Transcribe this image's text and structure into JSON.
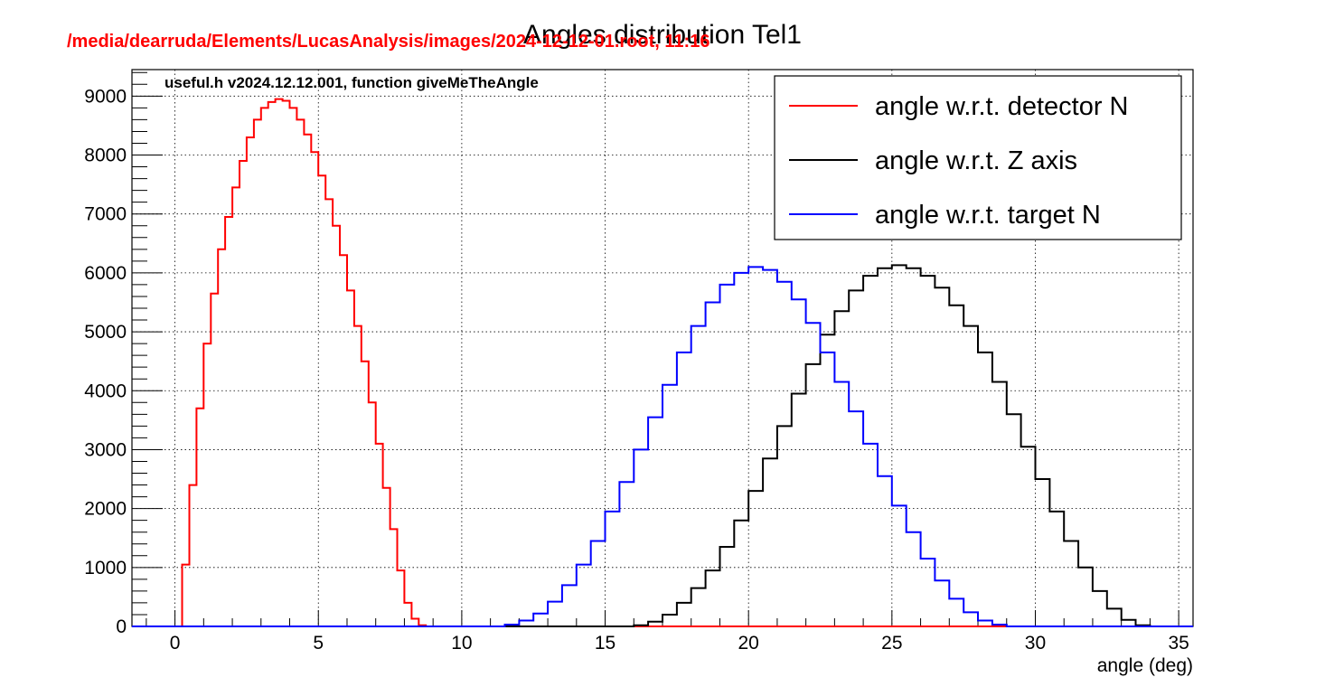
{
  "chart_data": {
    "type": "line",
    "title": "Angles distribution Tel1",
    "file_label": "/media/dearruda/Elements/LucasAnalysis/images/2024-12-12-01.root, 11:16",
    "version_label": "useful.h v2024.12.12.001, function giveMeTheAngle",
    "xlabel": "angle (deg)",
    "ylabel": "",
    "xlim": [
      -1.5,
      35.5
    ],
    "ylim": [
      0,
      9450
    ],
    "x_ticks": [
      0,
      5,
      10,
      15,
      20,
      25,
      30,
      35
    ],
    "y_ticks": [
      0,
      1000,
      2000,
      3000,
      4000,
      5000,
      6000,
      7000,
      8000,
      9000
    ],
    "grid": true,
    "legend_position": "top-right",
    "histogram_step": true,
    "series": [
      {
        "name": "angle w.r.t. detector N",
        "color": "#ff0000",
        "x": [
          -1.5,
          0,
          0.25,
          0.5,
          0.75,
          1,
          1.25,
          1.5,
          1.75,
          2,
          2.25,
          2.5,
          2.75,
          3,
          3.25,
          3.5,
          3.75,
          4,
          4.25,
          4.5,
          4.75,
          5,
          5.25,
          5.5,
          5.75,
          6,
          6.25,
          6.5,
          6.75,
          7,
          7.25,
          7.5,
          7.75,
          8,
          8.25,
          8.5,
          8.75,
          9,
          9.25,
          9.5,
          35.5
        ],
        "y": [
          0,
          0,
          1050,
          2400,
          3700,
          4800,
          5650,
          6400,
          6950,
          7450,
          7900,
          8300,
          8600,
          8800,
          8900,
          8950,
          8920,
          8800,
          8600,
          8350,
          8050,
          7650,
          7250,
          6800,
          6300,
          5700,
          5100,
          4500,
          3800,
          3100,
          2350,
          1650,
          950,
          400,
          130,
          20,
          0,
          0,
          0,
          0,
          0
        ]
      },
      {
        "name": "angle w.r.t. Z axis",
        "color": "#000000",
        "x": [
          -1.5,
          15.5,
          16,
          16.5,
          17,
          17.5,
          18,
          18.5,
          19,
          19.5,
          20,
          20.5,
          21,
          21.5,
          22,
          22.5,
          23,
          23.5,
          24,
          24.5,
          25,
          25.5,
          26,
          26.5,
          27,
          27.5,
          28,
          28.5,
          29,
          29.5,
          30,
          30.5,
          31,
          31.5,
          32,
          32.5,
          33,
          33.5,
          34,
          35.5
        ],
        "y": [
          0,
          0,
          20,
          80,
          200,
          400,
          650,
          950,
          1350,
          1800,
          2300,
          2850,
          3400,
          3950,
          4450,
          4950,
          5350,
          5700,
          5950,
          6080,
          6130,
          6080,
          5950,
          5750,
          5450,
          5100,
          4650,
          4150,
          3600,
          3050,
          2500,
          1950,
          1450,
          1000,
          600,
          300,
          110,
          20,
          0,
          0
        ]
      },
      {
        "name": "angle w.r.t. target N",
        "color": "#0000ff",
        "x": [
          -1.5,
          11,
          11.5,
          12,
          12.5,
          13,
          13.5,
          14,
          14.5,
          15,
          15.5,
          16,
          16.5,
          17,
          17.5,
          18,
          18.5,
          19,
          19.5,
          20,
          20.5,
          21,
          21.5,
          22,
          22.5,
          23,
          23.5,
          24,
          24.5,
          25,
          25.5,
          26,
          26.5,
          27,
          27.5,
          28,
          28.5,
          29,
          29.5,
          35.5
        ],
        "y": [
          0,
          0,
          30,
          100,
          220,
          420,
          700,
          1050,
          1450,
          1950,
          2450,
          3000,
          3550,
          4100,
          4650,
          5100,
          5500,
          5800,
          6000,
          6100,
          6050,
          5850,
          5550,
          5150,
          4650,
          4150,
          3650,
          3100,
          2550,
          2050,
          1600,
          1150,
          780,
          470,
          240,
          100,
          30,
          0,
          0,
          0
        ]
      }
    ]
  }
}
